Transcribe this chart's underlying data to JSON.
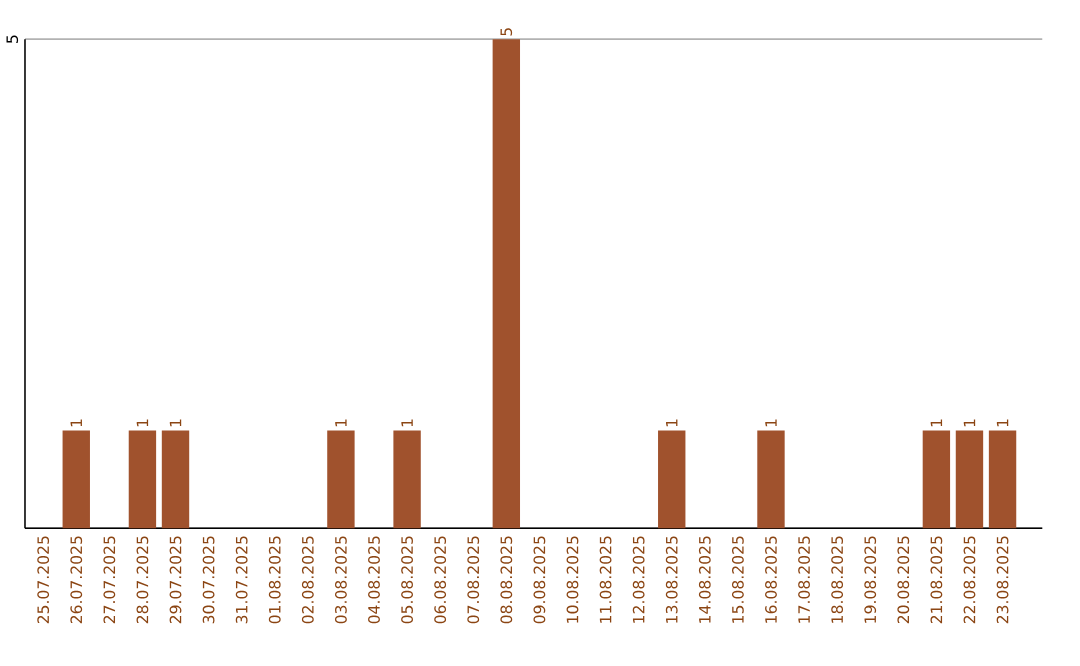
{
  "chart_data": {
    "type": "bar",
    "categories": [
      "25.07.2025",
      "26.07.2025",
      "27.07.2025",
      "28.07.2025",
      "29.07.2025",
      "30.07.2025",
      "31.07.2025",
      "01.08.2025",
      "02.08.2025",
      "03.08.2025",
      "04.08.2025",
      "05.08.2025",
      "06.08.2025",
      "07.08.2025",
      "08.08.2025",
      "09.08.2025",
      "10.08.2025",
      "11.08.2025",
      "12.08.2025",
      "13.08.2025",
      "14.08.2025",
      "15.08.2025",
      "16.08.2025",
      "17.08.2025",
      "18.08.2025",
      "19.08.2025",
      "20.08.2025",
      "21.08.2025",
      "22.08.2025",
      "23.08.2025"
    ],
    "values": [
      0,
      1,
      0,
      1,
      1,
      0,
      0,
      0,
      0,
      1,
      0,
      1,
      0,
      0,
      5,
      0,
      0,
      0,
      0,
      1,
      0,
      0,
      1,
      0,
      0,
      0,
      0,
      1,
      1,
      1
    ],
    "value_labels": [
      null,
      "1",
      null,
      "1",
      "1",
      null,
      null,
      null,
      null,
      "1",
      null,
      "1",
      null,
      null,
      "5",
      null,
      null,
      null,
      null,
      "1",
      null,
      null,
      "1",
      null,
      null,
      null,
      null,
      "1",
      "1",
      "1"
    ],
    "color": "#a0522d",
    "ylim": [
      0,
      5
    ],
    "yticks": [
      {
        "value": 0,
        "label": null
      },
      5
    ],
    "grid": "y"
  }
}
